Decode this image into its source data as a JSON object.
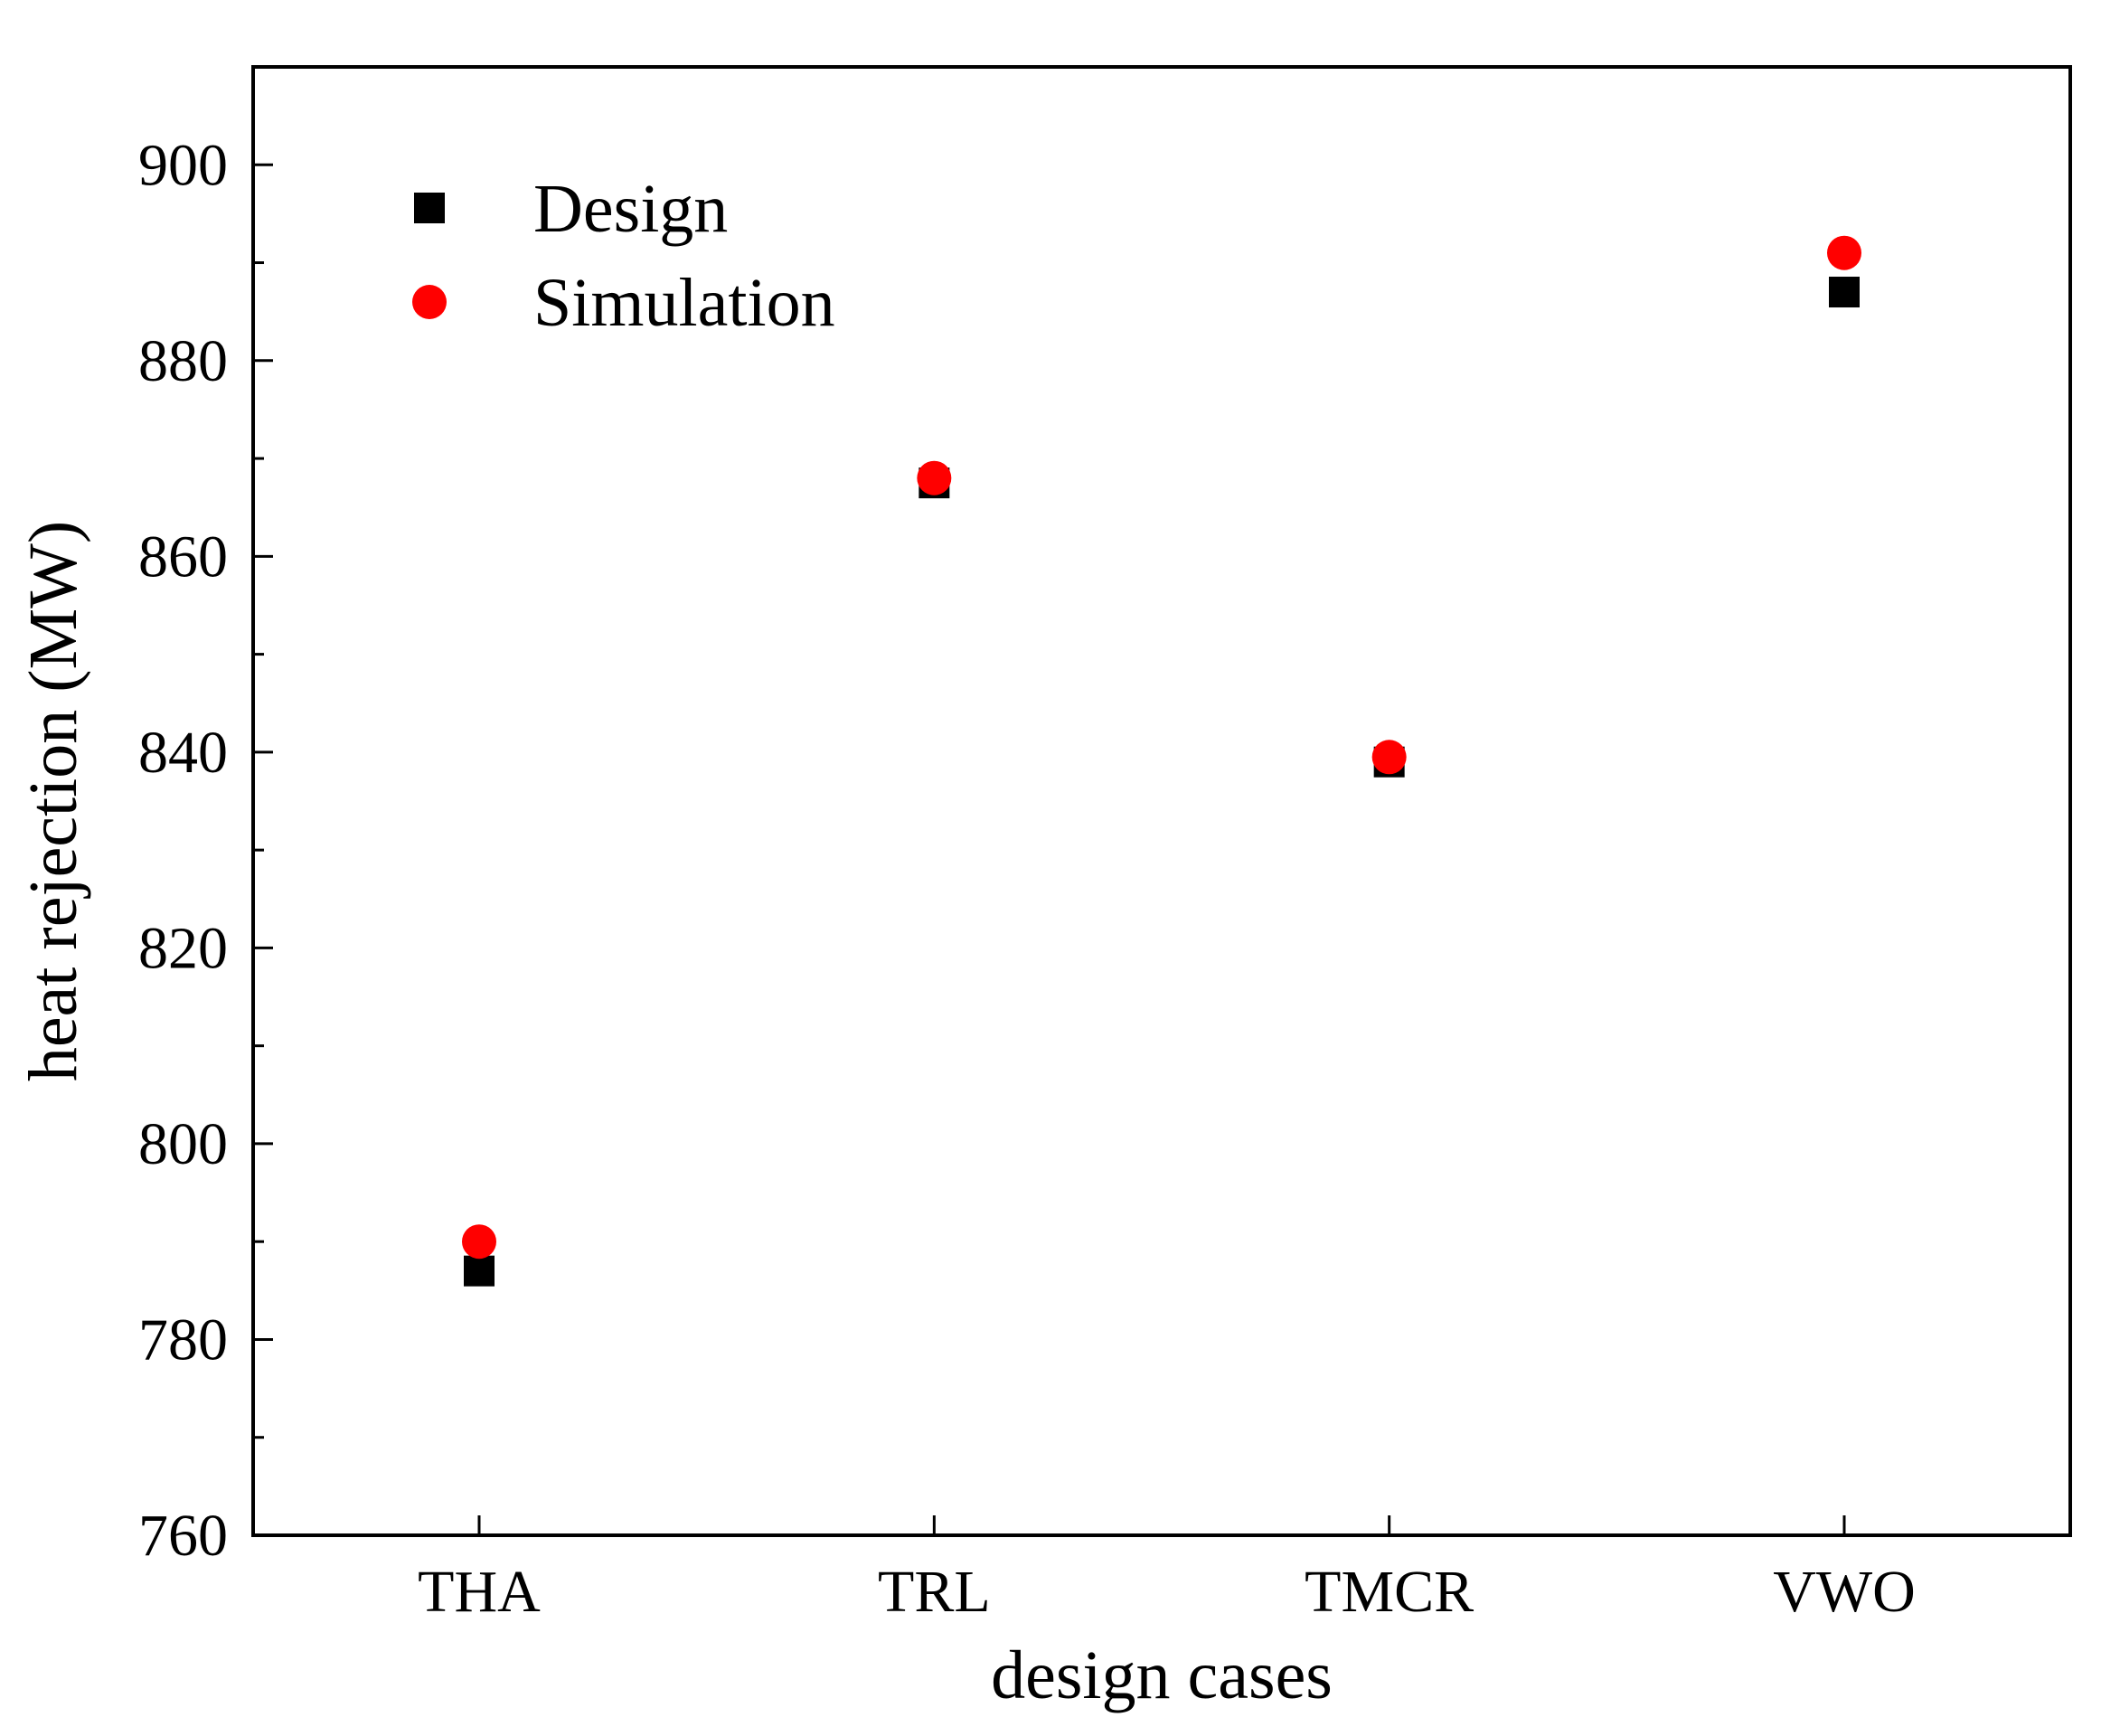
{
  "chart_data": {
    "type": "scatter",
    "title": "",
    "xlabel": "design cases",
    "ylabel": "heat rejection (MW)",
    "categories": [
      "THA",
      "TRL",
      "TMCR",
      "VWO"
    ],
    "ylim": [
      760,
      910
    ],
    "yticks": [
      760,
      780,
      800,
      820,
      840,
      860,
      880,
      900
    ],
    "y_minor_step": 10,
    "grid": false,
    "legend_position": "top-left",
    "series": [
      {
        "name": "Design",
        "marker": "square",
        "color": "#000000",
        "values": [
          787,
          867.5,
          839,
          887
        ]
      },
      {
        "name": "Simulation",
        "marker": "circle",
        "color": "#ff0000",
        "values": [
          790,
          868,
          839.5,
          891
        ]
      }
    ]
  }
}
